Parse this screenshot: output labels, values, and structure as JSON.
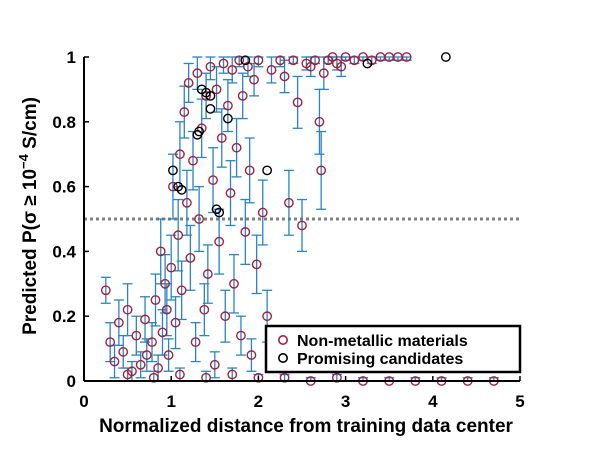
{
  "chart_data": {
    "type": "scatter",
    "xlabel": "Normalized distance from training data center",
    "ylabel_prefix": "Predicted P(σ ≥ 10",
    "ylabel_exp": "−4",
    "ylabel_suffix": " S/cm)",
    "xlim": [
      0,
      5
    ],
    "ylim": [
      0,
      1
    ],
    "x_ticks": [
      0,
      1,
      2,
      3,
      4,
      5
    ],
    "y_ticks": [
      0,
      0.2,
      0.4,
      0.6,
      0.8,
      1
    ],
    "x_tick_labels": [
      "0",
      "1",
      "2",
      "3",
      "4",
      "5"
    ],
    "y_tick_labels": [
      "0",
      "0.2",
      "0.4",
      "0.6",
      "0.8",
      "1"
    ],
    "threshold": 0.5,
    "legend_position": "bottom-right",
    "colors": {
      "non_metallic": "#a3203f",
      "promising": "#000000",
      "error_bar": "#2a84c4",
      "threshold": "#808080"
    },
    "series": [
      {
        "name": "Non-metallic materials",
        "points": [
          [
            0.25,
            0.28,
            0.04
          ],
          [
            0.3,
            0.12,
            0.06
          ],
          [
            0.35,
            0.06,
            0.05
          ],
          [
            0.4,
            0.18,
            0.07
          ],
          [
            0.45,
            0.09,
            0.05
          ],
          [
            0.5,
            0.22,
            0.08
          ],
          [
            0.55,
            0.03,
            0.03
          ],
          [
            0.6,
            0.14,
            0.06
          ],
          [
            0.65,
            0.05,
            0.04
          ],
          [
            0.7,
            0.19,
            0.07
          ],
          [
            0.72,
            0.08,
            0.05
          ],
          [
            0.78,
            0.12,
            0.06
          ],
          [
            0.82,
            0.25,
            0.08
          ],
          [
            0.85,
            0.04,
            0.04
          ],
          [
            0.88,
            0.4,
            0.1
          ],
          [
            0.9,
            0.15,
            0.07
          ],
          [
            0.93,
            0.3,
            0.09
          ],
          [
            0.95,
            0.22,
            0.08
          ],
          [
            0.97,
            0.08,
            0.05
          ],
          [
            1.0,
            0.35,
            0.1
          ],
          [
            1.02,
            0.6,
            0.1
          ],
          [
            1.05,
            0.18,
            0.08
          ],
          [
            1.08,
            0.45,
            0.11
          ],
          [
            1.1,
            0.7,
            0.1
          ],
          [
            1.12,
            0.28,
            0.09
          ],
          [
            1.15,
            0.83,
            0.08
          ],
          [
            1.18,
            0.55,
            0.1
          ],
          [
            1.2,
            0.92,
            0.06
          ],
          [
            1.22,
            0.38,
            0.1
          ],
          [
            1.25,
            0.68,
            0.09
          ],
          [
            1.28,
            0.12,
            0.06
          ],
          [
            1.3,
            0.95,
            0.05
          ],
          [
            1.32,
            0.5,
            0.1
          ],
          [
            1.35,
            0.78,
            0.09
          ],
          [
            1.38,
            0.22,
            0.08
          ],
          [
            1.4,
            0.88,
            0.07
          ],
          [
            1.42,
            0.33,
            0.09
          ],
          [
            1.45,
            0.97,
            0.04
          ],
          [
            1.48,
            0.62,
            0.1
          ],
          [
            1.5,
            0.05,
            0.04
          ],
          [
            1.52,
            0.9,
            0.07
          ],
          [
            1.55,
            0.43,
            0.1
          ],
          [
            1.58,
            0.75,
            0.09
          ],
          [
            1.6,
            0.98,
            0.03
          ],
          [
            1.62,
            0.2,
            0.08
          ],
          [
            1.65,
            0.85,
            0.08
          ],
          [
            1.68,
            0.58,
            0.1
          ],
          [
            1.7,
            0.96,
            0.04
          ],
          [
            1.72,
            0.3,
            0.09
          ],
          [
            1.75,
            0.72,
            0.09
          ],
          [
            1.78,
            0.99,
            0.02
          ],
          [
            1.8,
            0.14,
            0.06
          ],
          [
            1.82,
            0.88,
            0.07
          ],
          [
            1.85,
            0.46,
            0.1
          ],
          [
            1.88,
            0.97,
            0.03
          ],
          [
            1.9,
            0.65,
            0.1
          ],
          [
            1.92,
            0.08,
            0.05
          ],
          [
            1.95,
            0.93,
            0.05
          ],
          [
            1.98,
            0.36,
            0.09
          ],
          [
            2.0,
            0.99,
            0.02
          ],
          [
            2.05,
            0.52,
            0.1
          ],
          [
            2.1,
            0.2,
            0.08
          ],
          [
            2.15,
            0.96,
            0.04
          ],
          [
            2.2,
            0.1,
            0.06
          ],
          [
            2.25,
            0.99,
            0.02
          ],
          [
            2.3,
            0.94,
            0.05
          ],
          [
            2.35,
            0.55,
            0.1
          ],
          [
            2.4,
            0.99,
            0.01
          ],
          [
            2.45,
            0.86,
            0.08
          ],
          [
            2.5,
            0.48,
            0.08
          ],
          [
            2.55,
            0.98,
            0.02
          ],
          [
            2.6,
            0.97,
            0.03
          ],
          [
            2.65,
            0.99,
            0.01
          ],
          [
            2.7,
            0.8,
            0.1
          ],
          [
            2.72,
            0.65,
            0.12
          ],
          [
            2.75,
            0.95,
            0.05
          ],
          [
            2.8,
            0.99,
            0.01
          ],
          [
            2.85,
            1.0,
            0.01
          ],
          [
            2.9,
            0.98,
            0.02
          ],
          [
            2.95,
            0.97,
            0.03
          ],
          [
            3.0,
            1.0,
            0.01
          ],
          [
            3.1,
            0.99,
            0.01
          ],
          [
            3.2,
            1.0,
            0.01
          ],
          [
            3.3,
            0.99,
            0.01
          ],
          [
            3.4,
            1.0,
            0.01
          ],
          [
            3.5,
            1.0,
            0.01
          ],
          [
            3.6,
            1.0,
            0.01
          ],
          [
            3.7,
            1.0,
            0.01
          ],
          [
            0.5,
            0.02,
            0.02
          ],
          [
            0.8,
            0.01,
            0.02
          ],
          [
            1.1,
            0.02,
            0.02
          ],
          [
            1.4,
            0.01,
            0.02
          ],
          [
            1.7,
            0.02,
            0.02
          ],
          [
            2.0,
            0.01,
            0.01
          ],
          [
            2.3,
            0.01,
            0.01
          ],
          [
            2.6,
            0.0,
            0.01
          ],
          [
            2.9,
            0.01,
            0.01
          ],
          [
            3.2,
            0.0,
            0.01
          ],
          [
            3.5,
            0.0,
            0.01
          ],
          [
            3.8,
            0.0,
            0.01
          ],
          [
            4.1,
            0.0,
            0.01
          ],
          [
            4.4,
            0.0,
            0.01
          ],
          [
            4.7,
            0.0,
            0.01
          ]
        ]
      },
      {
        "name": "Promising candidates",
        "points": [
          [
            1.02,
            0.65,
            0.0
          ],
          [
            1.08,
            0.6,
            0.0
          ],
          [
            1.12,
            0.59,
            0.0
          ],
          [
            1.3,
            0.76,
            0.0
          ],
          [
            1.32,
            0.77,
            0.0
          ],
          [
            1.35,
            0.9,
            0.0
          ],
          [
            1.4,
            0.89,
            0.0
          ],
          [
            1.45,
            0.88,
            0.0
          ],
          [
            1.45,
            0.84,
            0.0
          ],
          [
            1.52,
            0.53,
            0.0
          ],
          [
            1.55,
            0.52,
            0.0
          ],
          [
            1.65,
            0.81,
            0.0
          ],
          [
            1.85,
            0.99,
            0.0
          ],
          [
            2.1,
            0.65,
            0.0
          ],
          [
            3.25,
            0.98,
            0.0
          ],
          [
            4.15,
            1.0,
            0.0
          ]
        ]
      }
    ]
  }
}
